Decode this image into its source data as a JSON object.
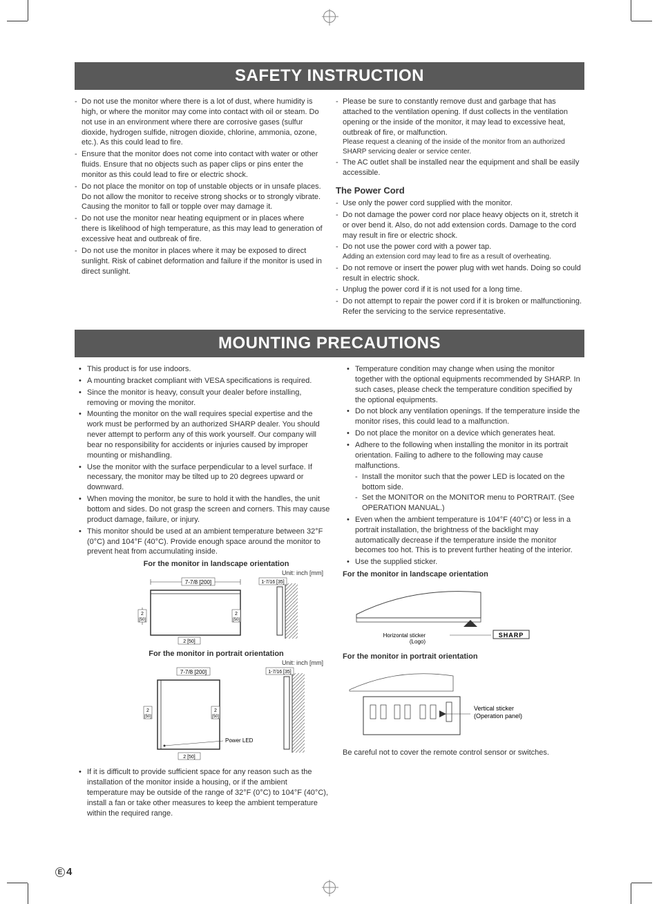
{
  "headings": {
    "safety": "SAFETY INSTRUCTION",
    "mounting": "MOUNTING PRECAUTIONS",
    "powerCord": "The Power Cord"
  },
  "safetyLeft": [
    "Do not use the monitor where there is a lot of dust, where humidity is high, or where the monitor may come into contact with oil or steam. Do not use in an environment where there are corrosive gases (sulfur dioxide, hydrogen sulfide, nitrogen dioxide, chlorine, ammonia, ozone, etc.). As this could lead to fire.",
    "Ensure that the monitor does not come into contact with water or other fluids. Ensure that no objects such as paper clips or pins enter the monitor as this could lead to fire or electric shock.",
    "Do not place the monitor on top of unstable objects or in unsafe places. Do not allow the monitor to receive strong shocks or to strongly vibrate. Causing the monitor to fall or topple over may damage it.",
    "Do not use the monitor near heating equipment or in places where there is likelihood of high temperature, as this may lead to generation of excessive heat and outbreak of fire.",
    "Do not use the monitor in places where it may be exposed to direct sunlight. Risk of cabinet deformation and failure if the monitor is used in direct sunlight."
  ],
  "safetyRightTop": [
    "Please be sure to constantly remove dust and garbage that has attached to the ventilation opening. If dust collects in the ventilation opening or the inside of the monitor, it may lead to excessive heat, outbreak of fire, or malfunction.\nPlease request a cleaning of the inside of the monitor from an authorized SHARP servicing dealer or service center.",
    "The AC outlet shall be installed near the equipment and shall be easily accessible."
  ],
  "powerCordItems": [
    "Use only the power cord supplied with the monitor.",
    "Do not damage the power cord nor place heavy objects on it, stretch it or over bend it. Also, do not add extension cords. Damage to the cord may result in fire or electric shock.",
    "Do not use the power cord with a power tap.\nAdding an extension cord may lead to fire as a result of overheating.",
    "Do not remove or insert the power plug with wet hands. Doing so could result in electric shock.",
    "Unplug the power cord if it is not used for a long time.",
    "Do not attempt to repair the power cord if it is broken or malfunctioning. Refer the servicing to the service representative."
  ],
  "mountingLeft": [
    "This product is for use indoors.",
    "A mounting bracket compliant with VESA specifications is required.",
    "Since the monitor is heavy, consult your dealer before installing, removing or moving the monitor.",
    "Mounting the monitor on the wall requires special expertise and the work must be performed by an authorized SHARP dealer. You should never attempt to perform any of this work yourself. Our company will bear no responsibility for accidents or injuries caused by improper mounting or mishandling.",
    "Use the monitor with the surface perpendicular to a level surface. If necessary, the monitor may be tilted up to 20 degrees upward or downward.",
    "When moving the monitor, be sure to hold it with the handles, the unit bottom and sides. Do not grasp the screen and corners. This may cause product damage, failure, or injury.",
    "This monitor should be used at an ambient temperature between 32°F (0°C) and 104°F (40°C). Provide enough space around the monitor to prevent heat from accumulating inside."
  ],
  "mountingLeftAfterFig": [
    "If it is difficult to provide sufficient space for any reason such as the installation of the monitor inside a housing, or if the ambient temperature may be outside of the range of 32°F (0°C) to 104°F (40°C), install a fan or take other measures to keep the ambient temperature within the required range."
  ],
  "mountingRight": [
    {
      "text": "Temperature condition may change when using the monitor together with the optional equipments recommended by SHARP. In such cases, please check the temperature condition specified by the optional equipments."
    },
    {
      "text": "Do not block any ventilation openings. If the temperature inside the monitor rises, this could lead to a malfunction."
    },
    {
      "text": "Do not place the monitor on a device which generates heat."
    },
    {
      "text": "Adhere to the following when installing the monitor in its portrait orientation. Failing to adhere to the following may cause malfunctions.",
      "sub": [
        "Install the monitor such that the power LED is located on the bottom side.",
        "Set the MONITOR on the MONITOR menu to PORTRAIT. (See OPERATION MANUAL.)"
      ]
    },
    {
      "text": "Even when the ambient temperature is 104°F (40°C) or less in a portrait installation, the brightness of the backlight may automatically decrease if the temperature inside the monitor becomes too hot. This is to prevent further heating of the interior."
    },
    {
      "text": "Use the supplied sticker."
    }
  ],
  "figCaptions": {
    "landscape": "For the monitor in landscape orientation",
    "portrait": "For the monitor in portrait orientation",
    "unit": "Unit: inch [mm]"
  },
  "dims": {
    "top": "7-7/8 [200]",
    "side": "2\n[50]",
    "bottom": "2 [50]",
    "wallGap": "1-7/16 [35]",
    "powerLed": "Power LED"
  },
  "sticker": {
    "horizLabel": "Horizontal sticker\n(Logo)",
    "vertLabel": "Vertical sticker\n(Operation panel)",
    "logo": "SHARP",
    "note": "Be careful not to cover the remote control sensor or switches."
  },
  "pageNum": "4"
}
